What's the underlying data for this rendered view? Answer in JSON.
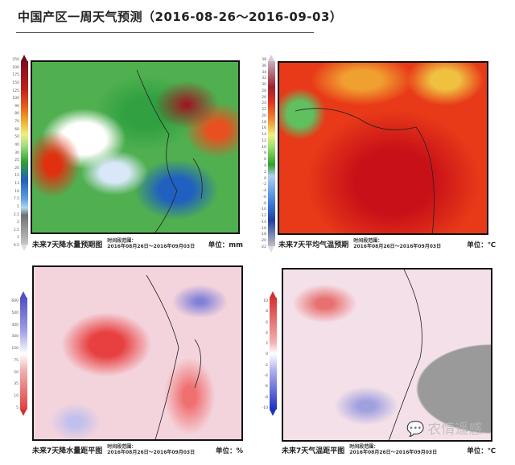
{
  "title": "中国产区一周天气预测（2016-08-26～2016-09-03）",
  "panels": [
    {
      "name": "未来7天降水量预期图",
      "range_label": "时间段范围：",
      "range": "2016年08月26日～2016年09月03日",
      "unit": "单位：mm",
      "legend": [
        "250",
        "200",
        "175",
        "150",
        "125",
        "100",
        "90",
        "80",
        "70",
        "60",
        "50",
        "40",
        "30",
        "25",
        "20",
        "15",
        "13",
        "10",
        "7.5",
        "5",
        "2.5",
        "2",
        "1.5",
        "1",
        "0.5"
      ]
    },
    {
      "name": "未来7天平均气温预期",
      "range_label": "时间段范围：",
      "range": "2016年08月26日～2016年09月03日",
      "unit": "单位：℃",
      "legend": [
        "38",
        "36",
        "34",
        "32",
        "30",
        "28",
        "26",
        "24",
        "22",
        "20",
        "18",
        "16",
        "14",
        "12",
        "10",
        "8",
        "6",
        "4",
        "2",
        "0",
        "-2",
        "-4",
        "-6",
        "-8",
        "-10",
        "-12",
        "-14",
        "-16",
        "-18",
        "-20",
        "-22"
      ]
    },
    {
      "name": "未来7天降水量距平图",
      "range_label": "时间段范围：",
      "range": "2016年08月26日～2016年09月03日",
      "unit": "单位：%",
      "legend": [
        "600",
        "500",
        "400",
        "300",
        "150",
        "75",
        "50",
        "35",
        "10",
        "5"
      ]
    },
    {
      "name": "未来7天气温距平图",
      "range_label": "时间段范围：",
      "range": "2016年08月26日～2016年09月03日",
      "unit": "单位：℃",
      "legend": [
        "10",
        "8",
        "6",
        "4",
        "2",
        "0",
        "-2",
        "-4",
        "-6",
        "-8",
        "-10"
      ]
    }
  ],
  "watermark": "农情遥感",
  "colors": {
    "precip_high": "#8b1a1a",
    "precip_low": "#9e9e9e",
    "temp_high": "#c0101a",
    "anom_wet": "#4040c0",
    "anom_dry": "#e03030"
  }
}
